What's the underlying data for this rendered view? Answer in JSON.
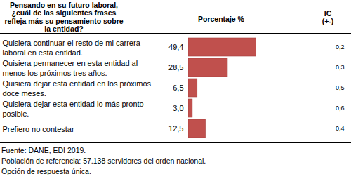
{
  "chart_data": {
    "type": "bar",
    "orientation": "horizontal",
    "title": "Pensando en su futuro laboral, ¿cuál de las siguientes frases refleja más su pensamiento sobre la entidad?",
    "x_label": "Porcentaje %",
    "categories": [
      "Quisiera continuar el resto de mi carrera laboral en esta entidad.",
      "Quisiera permanecer en esta entidad al menos los próximos tres años.",
      "Quisiera dejar esta entidad en los próximos doce meses.",
      "Quisiera dejar esta entidad lo más pronto posible.",
      "Prefiero no contestar"
    ],
    "values": [
      49.4,
      28.5,
      6.5,
      3.0,
      12.5
    ],
    "value_labels": [
      "49,4",
      "28,5",
      "6,5",
      "3,0",
      "12,5"
    ],
    "data_labels": true,
    "error_label": "IC (+-)",
    "errors": [
      0.2,
      0.3,
      0.5,
      0.6,
      0.4
    ],
    "error_labels": [
      "0,2",
      "0,3",
      "0,5",
      "0,6",
      "0,4"
    ],
    "color": "#c0504d",
    "tick_labels": false,
    "grid": false,
    "notes": [
      "Fuente: DANE, EDI 2019.",
      "Población de referencia: 57.138 servidores del orden nacional.",
      "Opción de respuesta única."
    ]
  }
}
